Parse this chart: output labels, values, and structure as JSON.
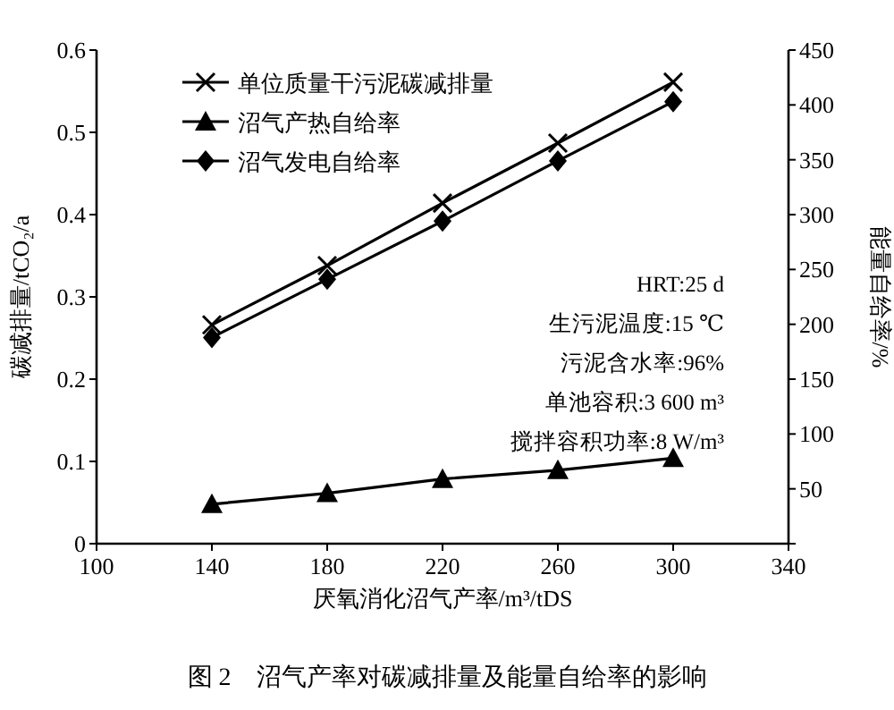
{
  "chart_data": {
    "type": "line",
    "xlabel": "厌氧消化沼气产率/m³/tDS",
    "ylabel": "碳减排量/tCO₂/a",
    "y2label": "能量自给率/%",
    "x": [
      140,
      180,
      220,
      260,
      300
    ],
    "series": [
      {
        "name": "单位质量干污泥碳减排量",
        "color": "#000000",
        "marker": "cross",
        "values": [
          0.266,
          0.338,
          0.414,
          0.487,
          0.561
        ]
      },
      {
        "name": "沼气产热自给率",
        "color": "#000000",
        "marker": "triangle",
        "axis": "y2",
        "values": [
          36,
          46,
          59,
          67,
          78
        ]
      },
      {
        "name": "沼气发电自给率",
        "color": "#000000",
        "marker": "diamond",
        "axis": "y2",
        "values": [
          188,
          241,
          294,
          349,
          403
        ]
      }
    ],
    "xlim": [
      100,
      340
    ],
    "xticks": [
      100,
      140,
      180,
      220,
      260,
      300,
      340
    ],
    "ylim": [
      0,
      0.6
    ],
    "yticks": [
      0,
      0.1,
      0.2,
      0.3,
      0.4,
      0.5,
      0.6
    ],
    "y2lim": [
      0,
      450
    ],
    "y2ticks": [
      {
        "value": 0,
        "label": null
      },
      50,
      100,
      150,
      200,
      250,
      300,
      350,
      400,
      450
    ],
    "legend": "top left",
    "grid": false,
    "line_style": "solid",
    "annotations": [
      "HRT:25 d",
      "生污泥温度:15 ℃",
      "污泥含水率:96%",
      "单池容积:3 600 m³",
      "搅拌容积功率:8 W/m³",
      "图 2　沼气产率对碳减排量及能量自给率的影响"
    ]
  }
}
